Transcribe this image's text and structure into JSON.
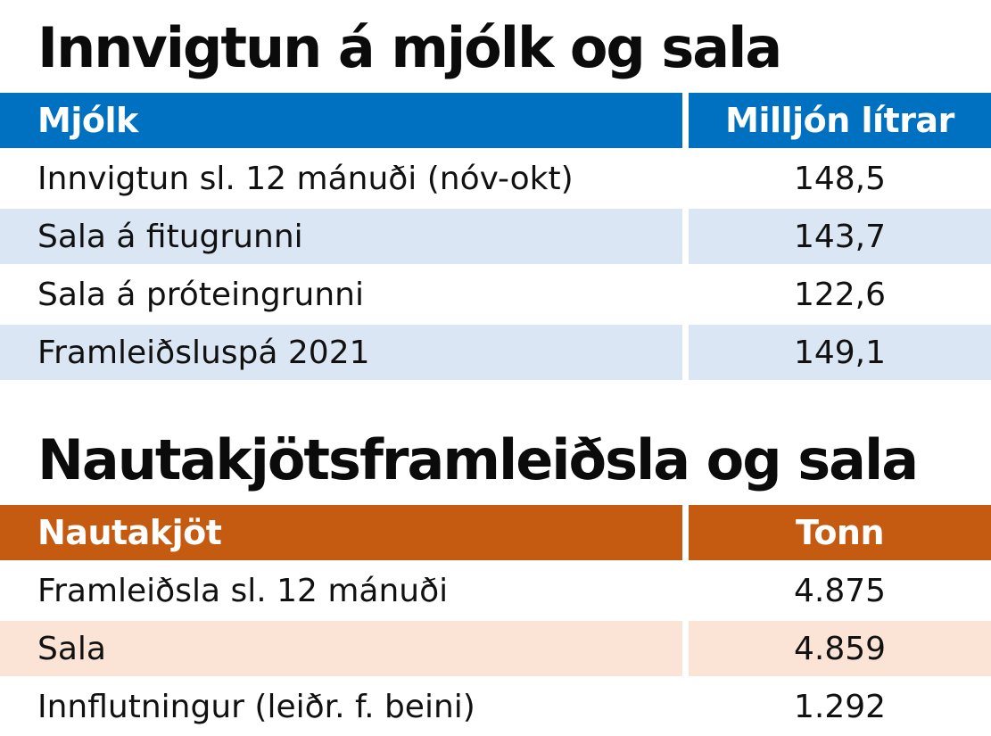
{
  "milk": {
    "title": "Innvigtun á mjólk og sala",
    "header": {
      "label": "Mjólk",
      "unit": "Milljón lítrar"
    },
    "rows": [
      {
        "label": "Innvigtun sl. 12 mánuði (nóv-okt)",
        "value": "148,5"
      },
      {
        "label": "Sala á fitugrunni",
        "value": "143,7"
      },
      {
        "label": "Sala á próteingrunni",
        "value": "122,6"
      },
      {
        "label": "Framleiðsluspá 2021",
        "value": "149,1"
      }
    ],
    "colors": {
      "header_bg": "#0070c0",
      "alt_row_bg": "#dae6f3"
    }
  },
  "beef": {
    "title": "Nautakjötsframleiðsla og sala",
    "header": {
      "label": "Nautakjöt",
      "unit": "Tonn"
    },
    "rows": [
      {
        "label": "Framleiðsla sl. 12 mánuði",
        "value": "4.875"
      },
      {
        "label": "Sala",
        "value": "4.859"
      },
      {
        "label": "Innflutningur (leiðr. f. beini)",
        "value": "1.292"
      }
    ],
    "colors": {
      "header_bg": "#c55a11",
      "alt_row_bg": "#fbe4d6"
    }
  }
}
